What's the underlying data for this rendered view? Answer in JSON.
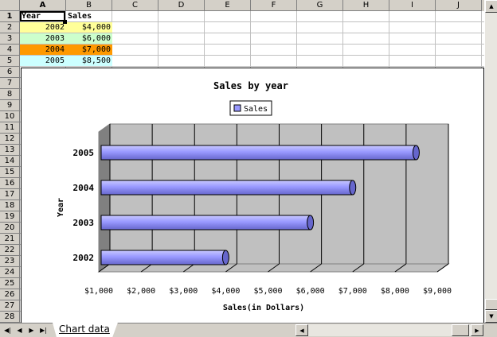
{
  "columns": [
    "A",
    "B",
    "C",
    "D",
    "E",
    "F",
    "G",
    "H",
    "I",
    "J"
  ],
  "rows": [
    "1",
    "2",
    "3",
    "4",
    "5",
    "6",
    "7",
    "8",
    "9",
    "10",
    "11",
    "12",
    "13",
    "14",
    "15",
    "16",
    "17",
    "18",
    "19",
    "20",
    "21",
    "22",
    "23",
    "24",
    "25",
    "26",
    "27",
    "28"
  ],
  "cells": {
    "header_year": "Year",
    "header_sales": "Sales",
    "data": [
      {
        "year": "2002",
        "sales": "$4,000"
      },
      {
        "year": "2003",
        "sales": "$6,000"
      },
      {
        "year": "2004",
        "sales": "$7,000"
      },
      {
        "year": "2005",
        "sales": "$8,500"
      }
    ]
  },
  "colors": {
    "row_2002": "#ffff99",
    "row_2003": "#ccffcc",
    "row_2004": "#ff9900",
    "row_2005": "#ccffff",
    "bar": "#9999ff",
    "plot_back": "#c0c0c0"
  },
  "sheet_tab": "Chart data",
  "icons": {
    "nav_first": "◀|",
    "nav_prev": "◀",
    "nav_next": "▶",
    "nav_last": "▶|",
    "scroll_up": "▲",
    "scroll_down": "▼",
    "scroll_left": "◀",
    "scroll_right": "▶"
  },
  "chart_data": {
    "type": "bar",
    "orientation": "horizontal",
    "style": "3d-cylinder",
    "title": "Sales by year",
    "xlabel": "Sales(in Dollars)",
    "ylabel": "Year",
    "categories": [
      "2002",
      "2003",
      "2004",
      "2005"
    ],
    "series": [
      {
        "name": "Sales",
        "values": [
          4000,
          6000,
          7000,
          8500
        ]
      }
    ],
    "xlim": [
      1000,
      9000
    ],
    "x_ticks": [
      "$1,000",
      "$2,000",
      "$3,000",
      "$4,000",
      "$5,000",
      "$6,000",
      "$7,000",
      "$8,000",
      "$9,000"
    ],
    "grid": true,
    "legend": "top-center"
  }
}
